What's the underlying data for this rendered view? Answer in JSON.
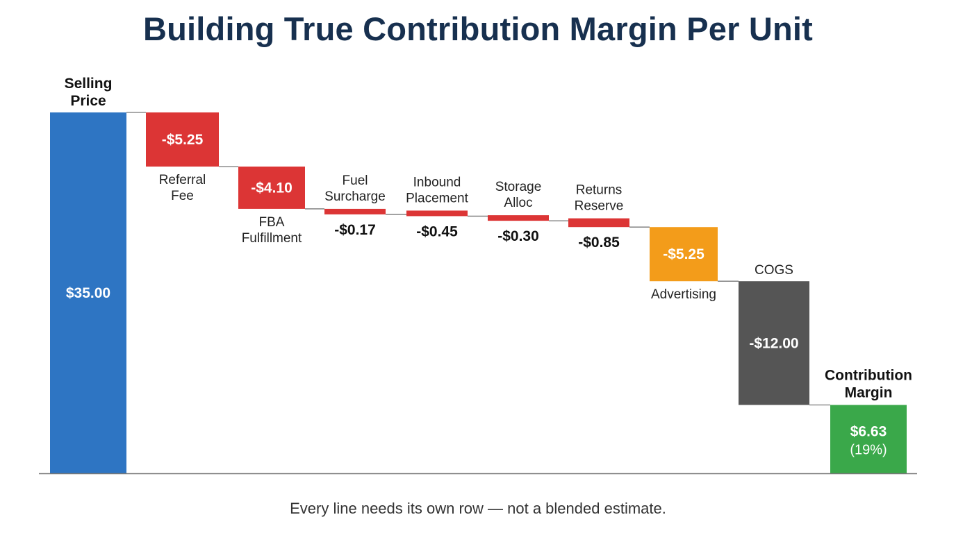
{
  "chart_data": {
    "type": "waterfall",
    "title": "Building True Contribution Margin Per Unit",
    "footnote": "Every line needs its own row — not a blended estimate.",
    "colors": {
      "total": "#2e75c3",
      "fee": "#dc3535",
      "advertising": "#f39c1a",
      "cogs": "#555555",
      "result": "#3aa84a",
      "connector": "#777777",
      "baseline": "#777777"
    },
    "steps": [
      {
        "name": "Selling Price",
        "label_lines": [
          "Selling",
          "Price"
        ],
        "kind": "total",
        "value": 35.0,
        "value_label": "$35.00"
      },
      {
        "name": "Referral Fee",
        "label_lines": [
          "Referral",
          "Fee"
        ],
        "kind": "fee",
        "value": -5.25,
        "value_label": "-$5.25"
      },
      {
        "name": "FBA Fulfillment",
        "label_lines": [
          "FBA",
          "Fulfillment"
        ],
        "kind": "fee",
        "value": -4.1,
        "value_label": "-$4.10"
      },
      {
        "name": "Fuel Surcharge",
        "label_lines": [
          "Fuel",
          "Surcharge"
        ],
        "kind": "fee",
        "value": -0.17,
        "value_label": "-$0.17"
      },
      {
        "name": "Inbound Placement",
        "label_lines": [
          "Inbound",
          "Placement"
        ],
        "kind": "fee",
        "value": -0.45,
        "value_label": "-$0.45"
      },
      {
        "name": "Storage Alloc",
        "label_lines": [
          "Storage",
          "Alloc"
        ],
        "kind": "fee",
        "value": -0.3,
        "value_label": "-$0.30"
      },
      {
        "name": "Returns Reserve",
        "label_lines": [
          "Returns",
          "Reserve"
        ],
        "kind": "fee",
        "value": -0.85,
        "value_label": "-$0.85"
      },
      {
        "name": "Advertising",
        "label_lines": [
          "Advertising"
        ],
        "kind": "advertising",
        "value": -5.25,
        "value_label": "-$5.25"
      },
      {
        "name": "COGS",
        "label_lines": [
          "COGS"
        ],
        "kind": "cogs",
        "value": -12.0,
        "value_label": "-$12.00"
      },
      {
        "name": "Contribution Margin",
        "label_lines": [
          "Contribution",
          "Margin"
        ],
        "kind": "result",
        "value": 6.63,
        "value_label": "$6.63",
        "sub_label": "(19%)"
      }
    ],
    "ylim": [
      0,
      35
    ],
    "grid": false,
    "legend": "none"
  }
}
